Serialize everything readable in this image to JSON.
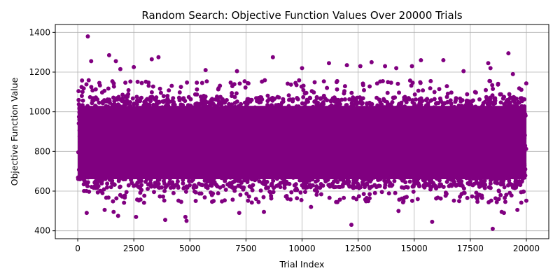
{
  "chart_data": {
    "type": "scatter",
    "title": "Random Search: Objective Function Values Over 20000 Trials",
    "xlabel": "Trial Index",
    "ylabel": "Objective Function Value",
    "xlim": [
      -1000,
      21000
    ],
    "ylim": [
      360,
      1440
    ],
    "xticks": [
      0,
      2500,
      5000,
      7500,
      10000,
      12500,
      15000,
      17500,
      20000
    ],
    "yticks": [
      400,
      600,
      800,
      1000,
      1200,
      1400
    ],
    "grid": true,
    "marker_color": "#800080",
    "n_trials": 20000,
    "dense_band": [
      615,
      1075
    ],
    "series": [
      {
        "outliers": [
          {
            "x": 450,
            "y": 1380
          },
          {
            "x": 600,
            "y": 1255
          },
          {
            "x": 1400,
            "y": 1285
          },
          {
            "x": 1700,
            "y": 1255
          },
          {
            "x": 1900,
            "y": 1215
          },
          {
            "x": 2500,
            "y": 1225
          },
          {
            "x": 3300,
            "y": 1265
          },
          {
            "x": 3600,
            "y": 1275
          },
          {
            "x": 5700,
            "y": 1210
          },
          {
            "x": 7100,
            "y": 1205
          },
          {
            "x": 8700,
            "y": 1275
          },
          {
            "x": 10000,
            "y": 1220
          },
          {
            "x": 11200,
            "y": 1245
          },
          {
            "x": 12000,
            "y": 1235
          },
          {
            "x": 12600,
            "y": 1230
          },
          {
            "x": 13100,
            "y": 1250
          },
          {
            "x": 13700,
            "y": 1230
          },
          {
            "x": 14200,
            "y": 1220
          },
          {
            "x": 14900,
            "y": 1230
          },
          {
            "x": 15300,
            "y": 1260
          },
          {
            "x": 16300,
            "y": 1260
          },
          {
            "x": 17200,
            "y": 1205
          },
          {
            "x": 18300,
            "y": 1245
          },
          {
            "x": 18400,
            "y": 1220
          },
          {
            "x": 19200,
            "y": 1295
          },
          {
            "x": 19400,
            "y": 1190
          },
          {
            "x": 400,
            "y": 490
          },
          {
            "x": 1200,
            "y": 505
          },
          {
            "x": 1600,
            "y": 495
          },
          {
            "x": 1800,
            "y": 475
          },
          {
            "x": 2600,
            "y": 470
          },
          {
            "x": 3900,
            "y": 455
          },
          {
            "x": 4800,
            "y": 470
          },
          {
            "x": 4850,
            "y": 450
          },
          {
            "x": 7200,
            "y": 490
          },
          {
            "x": 8300,
            "y": 495
          },
          {
            "x": 10400,
            "y": 520
          },
          {
            "x": 12200,
            "y": 430
          },
          {
            "x": 14300,
            "y": 500
          },
          {
            "x": 15800,
            "y": 445
          },
          {
            "x": 18500,
            "y": 410
          },
          {
            "x": 18900,
            "y": 495
          },
          {
            "x": 19000,
            "y": 490
          },
          {
            "x": 19600,
            "y": 505
          }
        ]
      }
    ]
  }
}
